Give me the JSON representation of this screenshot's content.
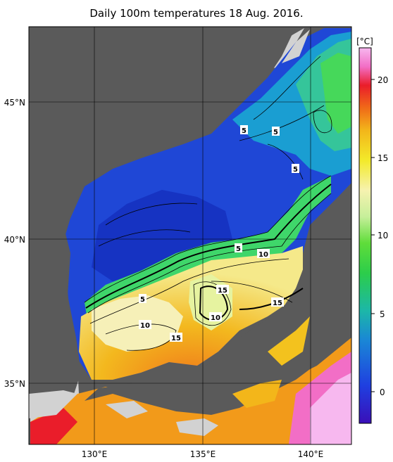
{
  "title": "Daily 100m temperatures 18 Aug. 2016.",
  "colorbar": {
    "unit": "[°C]",
    "ticks": [
      "20",
      "15",
      "10",
      "5",
      "0"
    ]
  },
  "lat_labels": [
    "45°N",
    "40°N",
    "35°N"
  ],
  "lon_labels": [
    "130°E",
    "135°E",
    "140°E"
  ],
  "contour_labels": [
    "5",
    "5",
    "5",
    "5",
    "10",
    "5",
    "15",
    "15",
    "10",
    "10",
    "15"
  ],
  "colors": {
    "land": "#5a5a5a",
    "no_data": "#d2d2d2",
    "cold": "#1a3fd0",
    "warm": "#f03a1e"
  }
}
